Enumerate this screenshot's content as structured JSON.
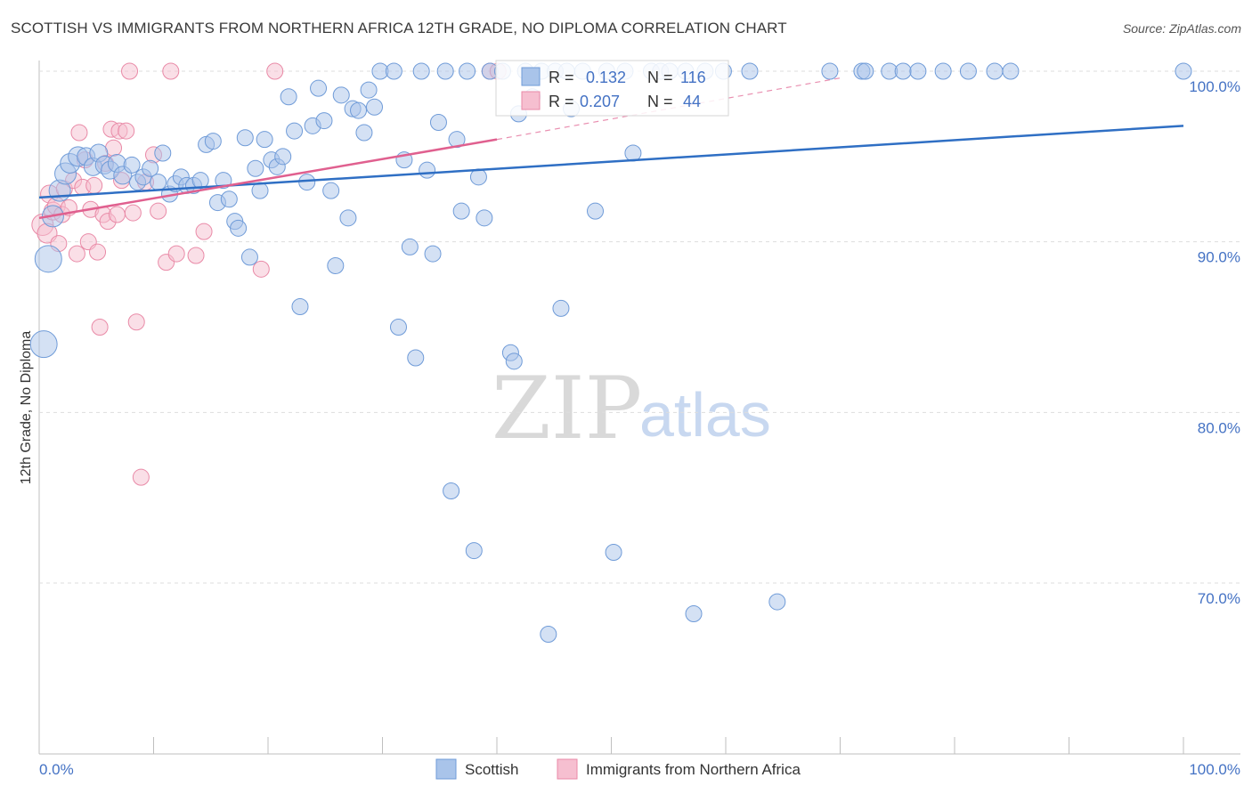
{
  "title": "SCOTTISH VS IMMIGRANTS FROM NORTHERN AFRICA 12TH GRADE, NO DIPLOMA CORRELATION CHART",
  "source": "Source: ZipAtlas.com",
  "watermark": {
    "zip": "ZIP",
    "atlas": "atlas"
  },
  "colors": {
    "blue_fill": "#a9c4ea",
    "blue_stroke": "#6f9bd8",
    "blue_line": "#2f6fc4",
    "pink_fill": "#f6bfd0",
    "pink_stroke": "#e98aa7",
    "pink_line": "#e0608f",
    "grid": "#dddddd",
    "label_blue": "#4472c4"
  },
  "legend_stats": [
    {
      "r_label": "R = ",
      "r_value": "0.132",
      "n_label": "N = ",
      "n_value": "116"
    },
    {
      "r_label": "R = ",
      "r_value": "0.207",
      "n_label": "N = ",
      "n_value": "44"
    }
  ],
  "chart_data": {
    "type": "scatter",
    "xlabel": "",
    "ylabel": "12th Grade, No Diploma",
    "xlim": [
      0,
      100
    ],
    "ylim": [
      60,
      101
    ],
    "x_tick_labels": [
      "0.0%",
      "100.0%"
    ],
    "y_ticks": [
      {
        "value": 100,
        "label": "100.0%"
      },
      {
        "value": 90,
        "label": "90.0%"
      },
      {
        "value": 80,
        "label": "80.0%"
      },
      {
        "value": 70,
        "label": "70.0%"
      }
    ],
    "series": [
      {
        "name": "Scottish",
        "color": "blue",
        "trend": {
          "x0": 0,
          "y0": 92.6,
          "x1": 100,
          "y1": 96.8
        },
        "points": [
          [
            0.4,
            84,
            15
          ],
          [
            0.8,
            89,
            15
          ],
          [
            1.2,
            91.5,
            12
          ],
          [
            1.8,
            93,
            12
          ],
          [
            2.3,
            94,
            12
          ],
          [
            2.7,
            94.6,
            11
          ],
          [
            3.4,
            95,
            11
          ],
          [
            4.1,
            95,
            10
          ],
          [
            4.7,
            94.4,
            10
          ],
          [
            5.2,
            95.2,
            10
          ],
          [
            5.7,
            94.5,
            10
          ],
          [
            6.2,
            94.2,
            10
          ],
          [
            6.8,
            94.6,
            10
          ],
          [
            7.3,
            93.9,
            10
          ],
          [
            8.1,
            94.5,
            9
          ],
          [
            8.6,
            93.5,
            9
          ],
          [
            9.1,
            93.8,
            9
          ],
          [
            9.7,
            94.3,
            9
          ],
          [
            10.4,
            93.5,
            9
          ],
          [
            10.8,
            95.2,
            9
          ],
          [
            11.4,
            92.8,
            9
          ],
          [
            11.9,
            93.4,
            9
          ],
          [
            12.4,
            93.8,
            9
          ],
          [
            12.9,
            93.3,
            9
          ],
          [
            13.5,
            93.3,
            9
          ],
          [
            14.1,
            93.6,
            9
          ],
          [
            14.6,
            95.7,
            9
          ],
          [
            15.2,
            95.9,
            9
          ],
          [
            15.6,
            92.3,
            9
          ],
          [
            16.1,
            93.6,
            9
          ],
          [
            16.6,
            92.5,
            9
          ],
          [
            17.1,
            91.2,
            9
          ],
          [
            17.4,
            90.8,
            9
          ],
          [
            18.0,
            96.1,
            9
          ],
          [
            18.4,
            89.1,
            9
          ],
          [
            18.9,
            94.3,
            9
          ],
          [
            19.3,
            93.0,
            9
          ],
          [
            19.7,
            96.0,
            9
          ],
          [
            20.3,
            94.8,
            9
          ],
          [
            20.8,
            94.4,
            9
          ],
          [
            21.3,
            95,
            9
          ],
          [
            21.8,
            98.5,
            9
          ],
          [
            22.3,
            96.5,
            9
          ],
          [
            22.8,
            86.2,
            9
          ],
          [
            23.4,
            93.5,
            9
          ],
          [
            23.9,
            96.8,
            9
          ],
          [
            24.4,
            99,
            9
          ],
          [
            24.9,
            97.1,
            9
          ],
          [
            25.5,
            93.0,
            9
          ],
          [
            25.9,
            88.6,
            9
          ],
          [
            26.4,
            98.6,
            9
          ],
          [
            27,
            91.4,
            9
          ],
          [
            27.4,
            97.8,
            9
          ],
          [
            27.9,
            97.7,
            9
          ],
          [
            28.4,
            96.4,
            9
          ],
          [
            28.8,
            98.9,
            9
          ],
          [
            29.3,
            97.9,
            9
          ],
          [
            29.8,
            100,
            9
          ],
          [
            31.0,
            100,
            9
          ],
          [
            31.4,
            85,
            9
          ],
          [
            31.9,
            94.8,
            9
          ],
          [
            32.4,
            89.7,
            9
          ],
          [
            32.9,
            83.2,
            9
          ],
          [
            33.4,
            100,
            9
          ],
          [
            33.9,
            94.2,
            9
          ],
          [
            34.4,
            89.3,
            9
          ],
          [
            34.9,
            97.0,
            9
          ],
          [
            35.5,
            100,
            9
          ],
          [
            36.0,
            75.4,
            9
          ],
          [
            36.5,
            96.0,
            9
          ],
          [
            36.9,
            91.8,
            9
          ],
          [
            37.4,
            100,
            9
          ],
          [
            38.0,
            71.9,
            9
          ],
          [
            38.4,
            93.8,
            9
          ],
          [
            38.9,
            91.4,
            9
          ],
          [
            39.4,
            100,
            9
          ],
          [
            40.5,
            100,
            9
          ],
          [
            41.2,
            83.5,
            9
          ],
          [
            41.5,
            83,
            9
          ],
          [
            41.9,
            97.5,
            9
          ],
          [
            42.5,
            100,
            9
          ],
          [
            43.1,
            98.5,
            9
          ],
          [
            43.9,
            100,
            9
          ],
          [
            44.5,
            67,
            9
          ],
          [
            45.1,
            100,
            9
          ],
          [
            45.6,
            86.1,
            9
          ],
          [
            46.1,
            100,
            9
          ],
          [
            46.5,
            97.8,
            9
          ],
          [
            47.5,
            100,
            9
          ],
          [
            48.6,
            91.8,
            9
          ],
          [
            49.6,
            100,
            9
          ],
          [
            50.2,
            71.8,
            9
          ],
          [
            51.2,
            100,
            9
          ],
          [
            51.9,
            95.2,
            9
          ],
          [
            53.5,
            100,
            9
          ],
          [
            54.3,
            100,
            9
          ],
          [
            55.1,
            100,
            9
          ],
          [
            56.5,
            100,
            9
          ],
          [
            57.2,
            68.2,
            9
          ],
          [
            58.2,
            100,
            9
          ],
          [
            59.8,
            100,
            9
          ],
          [
            62.1,
            100,
            9
          ],
          [
            64.5,
            68.9,
            9
          ],
          [
            69.1,
            100,
            9
          ],
          [
            71.9,
            100,
            9
          ],
          [
            72.2,
            100,
            9
          ],
          [
            74.3,
            100,
            9
          ],
          [
            75.5,
            100,
            9
          ],
          [
            76.8,
            100,
            9
          ],
          [
            79.0,
            100,
            9
          ],
          [
            81.2,
            100,
            9
          ],
          [
            83.5,
            100,
            9
          ],
          [
            84.9,
            100,
            9
          ],
          [
            100,
            100,
            9
          ]
        ]
      },
      {
        "name": "Immigrants from Northern Africa",
        "color": "pink",
        "trend": {
          "x0": 0,
          "y0": 91.4,
          "x1": 40,
          "y1": 96.0,
          "dash_to_x": 70,
          "dash_to_y": 99.6
        },
        "points": [
          [
            0.3,
            91,
            12
          ],
          [
            0.7,
            90.5,
            11
          ],
          [
            0.9,
            92.8,
            10
          ],
          [
            1.2,
            91.8,
            10
          ],
          [
            1.5,
            92.1,
            10
          ],
          [
            1.7,
            89.9,
            9
          ],
          [
            2.0,
            91.6,
            9
          ],
          [
            2.2,
            93.1,
            9
          ],
          [
            2.6,
            92.0,
            9
          ],
          [
            3.0,
            93.6,
            9
          ],
          [
            3.3,
            89.3,
            9
          ],
          [
            3.5,
            96.4,
            9
          ],
          [
            3.8,
            93.2,
            9
          ],
          [
            4.0,
            94.8,
            9
          ],
          [
            4.3,
            90.0,
            9
          ],
          [
            4.5,
            91.9,
            9
          ],
          [
            4.8,
            93.3,
            9
          ],
          [
            5.1,
            89.4,
            9
          ],
          [
            5.3,
            85,
            9
          ],
          [
            5.6,
            91.6,
            9
          ],
          [
            5.8,
            94.6,
            9
          ],
          [
            6.0,
            91.2,
            9
          ],
          [
            6.3,
            96.6,
            9
          ],
          [
            6.5,
            95.5,
            9
          ],
          [
            6.8,
            91.6,
            9
          ],
          [
            7.0,
            96.5,
            9
          ],
          [
            7.2,
            93.6,
            9
          ],
          [
            7.6,
            96.5,
            9
          ],
          [
            7.9,
            100,
            9
          ],
          [
            8.2,
            91.7,
            9
          ],
          [
            8.5,
            85.3,
            9
          ],
          [
            8.9,
            76.2,
            9
          ],
          [
            9.3,
            93.5,
            9
          ],
          [
            10.0,
            95.1,
            9
          ],
          [
            10.4,
            91.8,
            9
          ],
          [
            11.1,
            88.8,
            9
          ],
          [
            11.5,
            100,
            9
          ],
          [
            12.0,
            89.3,
            9
          ],
          [
            13.7,
            89.2,
            9
          ],
          [
            14.4,
            90.6,
            9
          ],
          [
            19.4,
            88.4,
            9
          ],
          [
            20.6,
            100,
            9
          ],
          [
            39.4,
            100,
            9
          ],
          [
            40.1,
            100,
            9
          ]
        ]
      }
    ]
  },
  "legend_bottom": [
    {
      "label": "Scottish",
      "color": "blue"
    },
    {
      "label": "Immigrants from Northern Africa",
      "color": "pink"
    }
  ]
}
